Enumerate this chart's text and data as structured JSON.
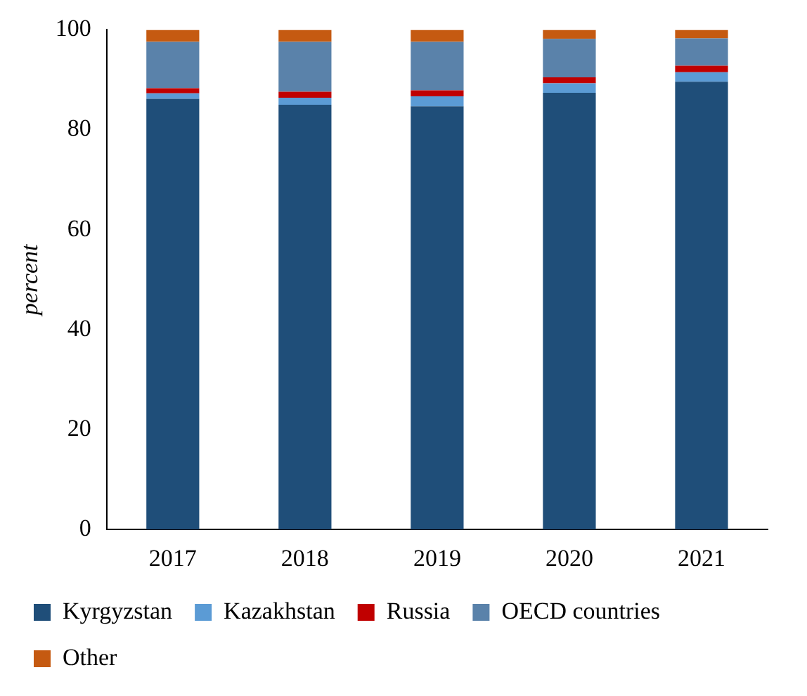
{
  "chart_data": {
    "type": "bar",
    "stacked": true,
    "ylabel": "percent",
    "categories": [
      "2017",
      "2018",
      "2019",
      "2020",
      "2021"
    ],
    "ylim": [
      0,
      100
    ],
    "yticks": [
      0,
      20,
      40,
      60,
      80,
      100
    ],
    "grid": false,
    "legend": "bottom",
    "series": [
      {
        "name": "Kyrgyzstan",
        "color": "#1f4e79",
        "values": [
          86.2,
          85.0,
          84.7,
          87.4,
          89.6
        ]
      },
      {
        "name": "Kazakhstan",
        "color": "#5b9bd5",
        "values": [
          1.1,
          1.4,
          2.0,
          1.9,
          1.9
        ]
      },
      {
        "name": "Russia",
        "color": "#c00000",
        "values": [
          1.0,
          1.2,
          1.2,
          1.2,
          1.3
        ]
      },
      {
        "name": "OECD countries",
        "color": "#5a82aa",
        "values": [
          9.3,
          10.0,
          9.7,
          7.7,
          5.5
        ]
      },
      {
        "name": "Other",
        "color": "#c55a11",
        "values": [
          2.4,
          2.4,
          2.4,
          1.8,
          1.7
        ]
      }
    ]
  }
}
